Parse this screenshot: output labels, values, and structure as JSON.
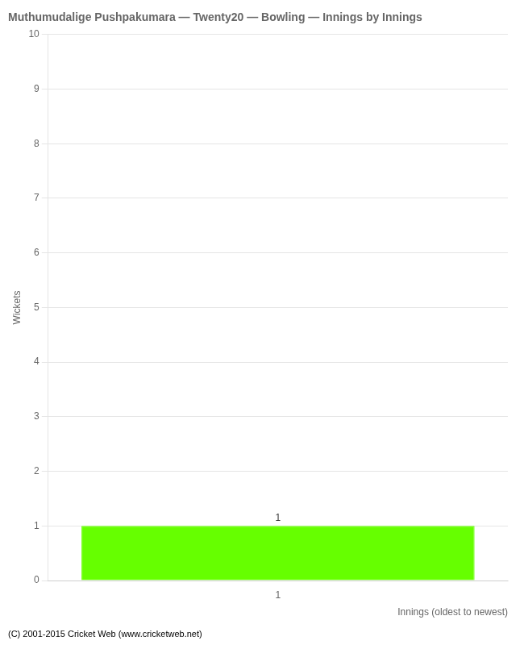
{
  "chart_data": {
    "type": "bar",
    "title": "Muthumudalige Pushpakumara — Twenty20 — Bowling — Innings by Innings",
    "xlabel": "Innings (oldest to newest)",
    "ylabel": "Wickets",
    "categories": [
      "1"
    ],
    "values": [
      1
    ],
    "color": "#66ff00",
    "ylim": [
      0,
      10
    ],
    "yticks": [
      0,
      1,
      2,
      3,
      4,
      5,
      6,
      7,
      8,
      9,
      10
    ],
    "grid": true,
    "data_labels": true,
    "footer": "(C) 2001-2015 Cricket Web (www.cricketweb.net)"
  }
}
